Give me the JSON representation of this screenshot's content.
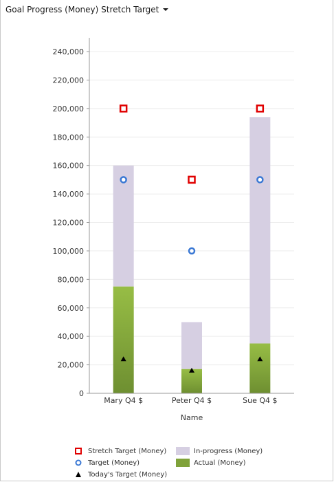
{
  "header": {
    "title": "Goal Progress (Money) Stretch Target"
  },
  "colors": {
    "stretch": "#e00000",
    "target": "#3a78d4",
    "today": "#000000",
    "inprogress": "#d6cfe2",
    "actual_top": "#97bd45",
    "actual_bottom": "#6e8f31"
  },
  "chart_data": {
    "type": "bar",
    "categories": [
      "Mary Q4 $",
      "Peter Q4 $",
      "Sue Q4 $"
    ],
    "xlabel": "Name",
    "ylabel": "",
    "ylim": [
      0,
      240000
    ],
    "ytick_values": [
      0,
      20000,
      40000,
      60000,
      80000,
      100000,
      120000,
      140000,
      160000,
      180000,
      200000,
      220000,
      240000
    ],
    "ytick_labels": [
      "0",
      "20,000",
      "40,000",
      "60,000",
      "80,000",
      "100,000",
      "120,000",
      "140,000",
      "160,000",
      "180,000",
      "200,000",
      "220,000",
      "240,000"
    ],
    "grid": true,
    "legend_position": "bottom",
    "series": [
      {
        "name": "Actual (Money)",
        "kind": "bar",
        "values": [
          75000,
          17000,
          35000
        ]
      },
      {
        "name": "In-progress (Money)",
        "kind": "bar-stacked",
        "values": [
          85000,
          33000,
          159000
        ]
      },
      {
        "name": "Stretch Target (Money)",
        "kind": "marker-square",
        "values": [
          200000,
          150000,
          200000
        ]
      },
      {
        "name": "Target (Money)",
        "kind": "marker-circle",
        "values": [
          150000,
          100000,
          150000
        ]
      },
      {
        "name": "Today's Target (Money)",
        "kind": "marker-triangle",
        "values": [
          24000,
          16000,
          24000
        ]
      }
    ]
  },
  "legend": [
    {
      "label": "Stretch Target (Money)",
      "icon": "square-marker"
    },
    {
      "label": "In-progress (Money)",
      "icon": "inprogress-swatch"
    },
    {
      "label": "Target (Money)",
      "icon": "circle-marker"
    },
    {
      "label": "Actual (Money)",
      "icon": "actual-swatch"
    },
    {
      "label": "Today's Target (Money)",
      "icon": "triangle-marker"
    }
  ]
}
